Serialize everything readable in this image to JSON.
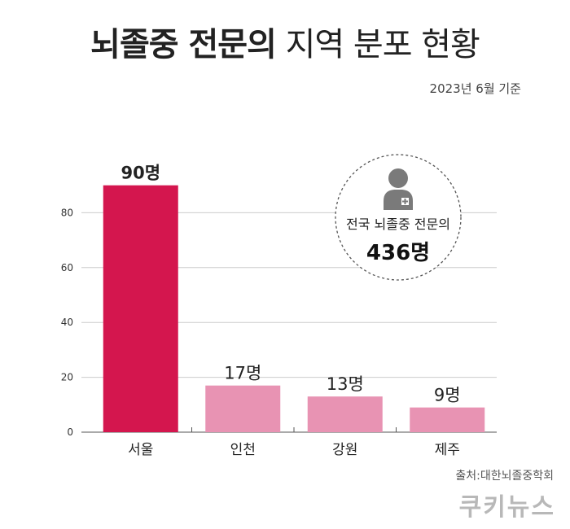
{
  "title_bold": "뇌졸중 전문의",
  "title_light": "지역 분포 현황",
  "subtitle": "2023년 6월 기준",
  "badge": {
    "label": "전국 뇌졸중 전문의",
    "value": "436명",
    "icon": "doctor-icon"
  },
  "source": "출처:대한뇌졸중학회",
  "brand": "쿠키뉴스",
  "colors": {
    "highlight_bar": "#d4164e",
    "bar": "#e893b3",
    "grid": "#cccccc",
    "icon": "#7a7a7a"
  },
  "chart_data": {
    "type": "bar",
    "categories": [
      "서울",
      "인천",
      "강원",
      "제주"
    ],
    "values": [
      90,
      17,
      13,
      9
    ],
    "data_labels": [
      "90명",
      "17명",
      "13명",
      "9명"
    ],
    "ylim": [
      0,
      90
    ],
    "yticks": [
      0,
      20,
      40,
      60,
      80
    ],
    "grid": true,
    "title": "",
    "xlabel": "",
    "ylabel": ""
  }
}
